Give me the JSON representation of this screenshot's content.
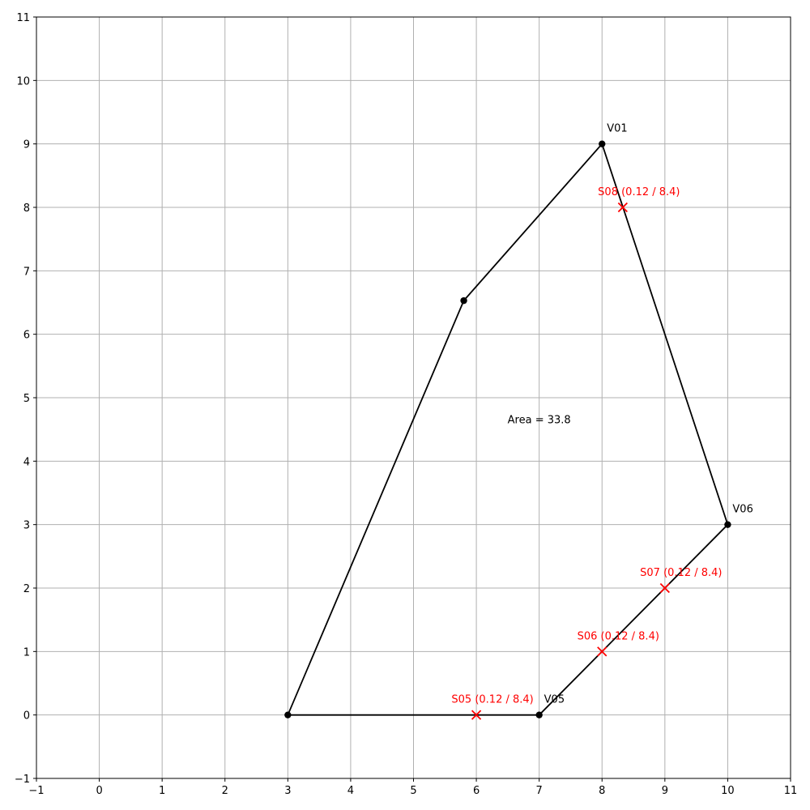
{
  "chart_data": {
    "type": "scatter",
    "title": "",
    "xlabel": "",
    "ylabel": "",
    "xlim": [
      -1,
      11
    ],
    "ylim": [
      -1,
      11
    ],
    "grid": true,
    "x_ticks": [
      -1,
      0,
      1,
      2,
      3,
      4,
      5,
      6,
      7,
      8,
      9,
      10,
      11
    ],
    "y_ticks": [
      -1,
      0,
      1,
      2,
      3,
      4,
      5,
      6,
      7,
      8,
      9,
      10,
      11
    ],
    "polygon": {
      "color": "#000000",
      "vertices": [
        {
          "x": 3,
          "y": 0,
          "label": ""
        },
        {
          "x": 7,
          "y": 0,
          "label": "V05"
        },
        {
          "x": 10,
          "y": 3,
          "label": "V06"
        },
        {
          "x": 8,
          "y": 9,
          "label": "V01"
        },
        {
          "x": 5.8,
          "y": 6.53,
          "label": ""
        }
      ]
    },
    "samples": {
      "color": "#ff0000",
      "points": [
        {
          "x": 6,
          "y": 0,
          "label": "S05 (0.12 / 8.4)"
        },
        {
          "x": 8,
          "y": 1,
          "label": "S06 (0.12 / 8.4)"
        },
        {
          "x": 9,
          "y": 2,
          "label": "S07 (0.12 / 8.4)"
        },
        {
          "x": 8.33,
          "y": 8,
          "label": "S08 (0.12 / 8.4)"
        }
      ]
    },
    "annotations": [
      {
        "x": 7,
        "y": 4.6,
        "text": "Area = 33.8"
      }
    ]
  }
}
